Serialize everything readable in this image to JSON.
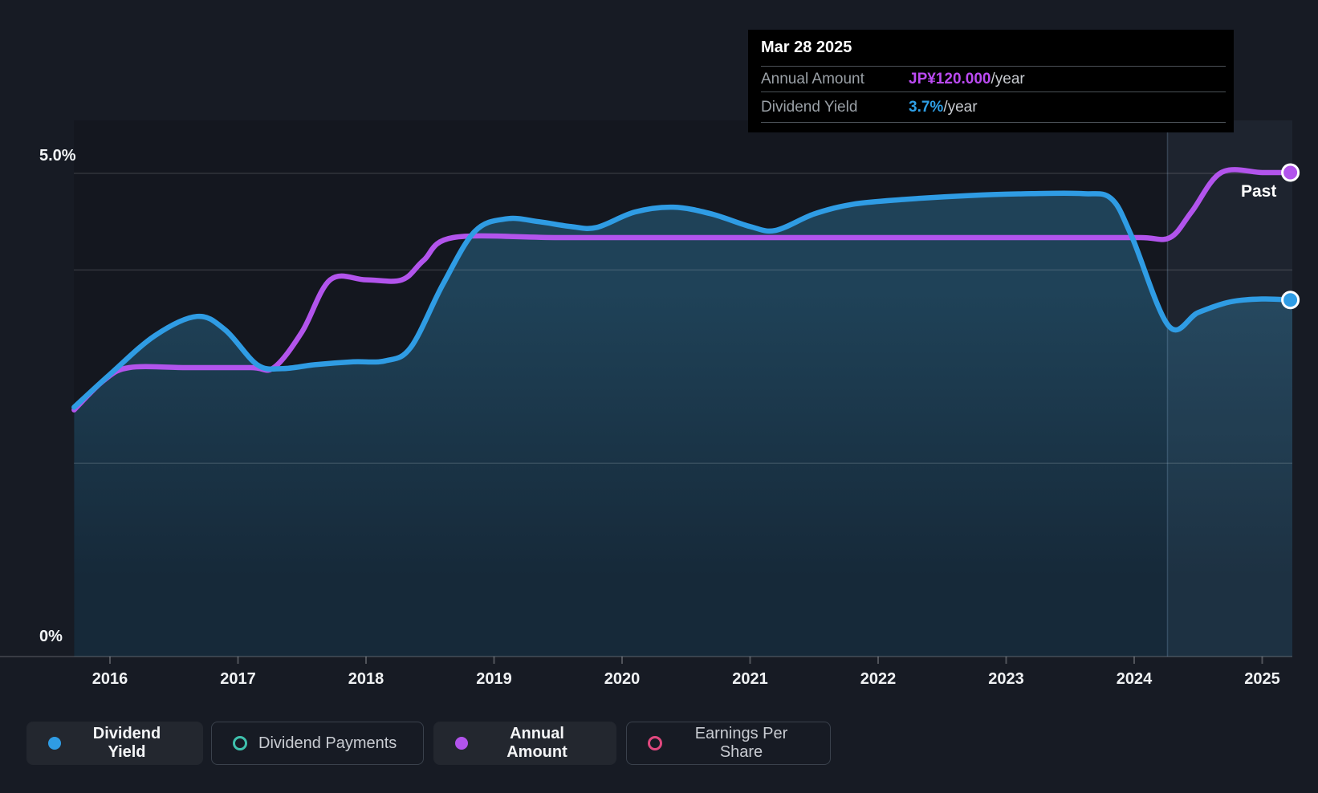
{
  "page": {
    "background": "#171b24"
  },
  "tooltip": {
    "title": "Mar 28 2025",
    "rows": [
      {
        "label": "Annual Amount",
        "value": "JP¥120.000",
        "suffix": "/year",
        "value_color": "#bb4af2"
      },
      {
        "label": "Dividend Yield",
        "value": "3.7%",
        "suffix": "/year",
        "value_color": "#2e9fe6"
      }
    ]
  },
  "chart_data": {
    "type": "line",
    "title": "Dividend history chart",
    "past_label": "Past",
    "x_axis": {
      "ticks": [
        "2016",
        "2017",
        "2018",
        "2019",
        "2020",
        "2021",
        "2022",
        "2023",
        "2024",
        "2025"
      ],
      "range_years": [
        2015.72,
        2025.25
      ]
    },
    "y_axis": {
      "top_label": "5.0%",
      "bottom_label": "0%",
      "unit": "%",
      "gridlines_pct": [
        5.0,
        4.0,
        2.0
      ],
      "ylim": [
        0,
        5.0
      ]
    },
    "divider_year": 2024.26,
    "series": [
      {
        "name": "Dividend Yield",
        "unit": "%",
        "color": "#2f9ce4",
        "area": true,
        "points": [
          [
            2015.72,
            2.58
          ],
          [
            2016.0,
            2.92
          ],
          [
            2016.35,
            3.32
          ],
          [
            2016.68,
            3.52
          ],
          [
            2016.9,
            3.38
          ],
          [
            2017.15,
            3.02
          ],
          [
            2017.35,
            2.98
          ],
          [
            2017.6,
            3.02
          ],
          [
            2017.9,
            3.05
          ],
          [
            2018.15,
            3.06
          ],
          [
            2018.35,
            3.2
          ],
          [
            2018.6,
            3.85
          ],
          [
            2018.85,
            4.4
          ],
          [
            2019.1,
            4.53
          ],
          [
            2019.35,
            4.5
          ],
          [
            2019.6,
            4.45
          ],
          [
            2019.8,
            4.44
          ],
          [
            2020.1,
            4.6
          ],
          [
            2020.4,
            4.65
          ],
          [
            2020.7,
            4.58
          ],
          [
            2021.0,
            4.45
          ],
          [
            2021.2,
            4.41
          ],
          [
            2021.5,
            4.58
          ],
          [
            2021.8,
            4.68
          ],
          [
            2022.2,
            4.73
          ],
          [
            2022.7,
            4.77
          ],
          [
            2023.2,
            4.79
          ],
          [
            2023.6,
            4.79
          ],
          [
            2023.82,
            4.74
          ],
          [
            2023.98,
            4.35
          ],
          [
            2024.27,
            3.42
          ],
          [
            2024.5,
            3.56
          ],
          [
            2024.75,
            3.67
          ],
          [
            2025.0,
            3.7
          ],
          [
            2025.22,
            3.69
          ]
        ]
      },
      {
        "name": "Annual Amount",
        "unit": "JP¥/year",
        "color": "#b254ec",
        "area": false,
        "points": [
          [
            2015.72,
            47
          ],
          [
            2015.95,
            56
          ],
          [
            2016.15,
            60
          ],
          [
            2016.6,
            60
          ],
          [
            2017.1,
            60
          ],
          [
            2017.28,
            60
          ],
          [
            2017.5,
            71
          ],
          [
            2017.72,
            87
          ],
          [
            2018.0,
            87
          ],
          [
            2018.28,
            87
          ],
          [
            2018.45,
            93
          ],
          [
            2018.68,
            100
          ],
          [
            2019.5,
            100
          ],
          [
            2020.5,
            100
          ],
          [
            2021.5,
            100
          ],
          [
            2022.5,
            100
          ],
          [
            2023.5,
            100
          ],
          [
            2024.05,
            100
          ],
          [
            2024.28,
            100
          ],
          [
            2024.45,
            108
          ],
          [
            2024.68,
            120
          ],
          [
            2025.0,
            120
          ],
          [
            2025.22,
            120
          ]
        ]
      }
    ]
  },
  "legend": [
    {
      "label": "Dividend Yield",
      "marker": "dot",
      "color": "#2f9ce4",
      "active": true
    },
    {
      "label": "Dividend Payments",
      "marker": "ring",
      "color": "#3fc1ad",
      "active": false
    },
    {
      "label": "Annual Amount",
      "marker": "dot",
      "color": "#b254ec",
      "active": true
    },
    {
      "label": "Earnings Per Share",
      "marker": "ring",
      "color": "#e0487e",
      "active": false
    }
  ]
}
